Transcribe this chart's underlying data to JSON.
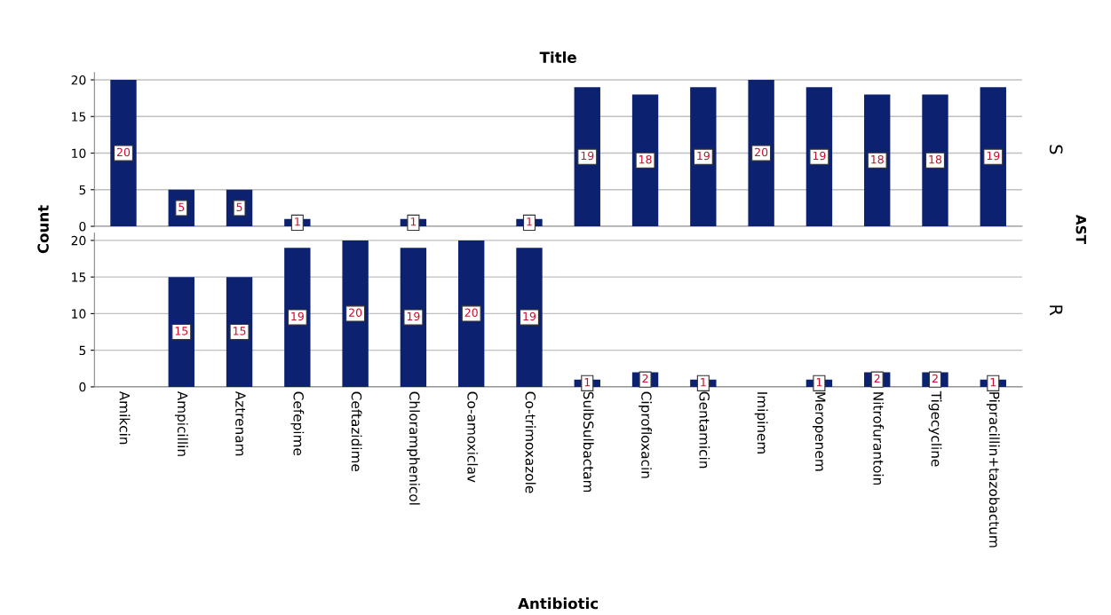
{
  "chart_data": [
    {
      "type": "bar",
      "title": "Title",
      "ylabel": "Count",
      "categories": [
        null,
        null,
        null,
        null,
        null,
        null,
        null,
        null,
        null,
        null,
        null,
        null,
        null,
        null,
        null,
        null
      ],
      "values": [
        20,
        5,
        5,
        1,
        0,
        1,
        0,
        1,
        19,
        18,
        19,
        20,
        19,
        18,
        18,
        19
      ],
      "value_labels": [
        "20",
        "5",
        "5",
        "1",
        null,
        "1",
        null,
        "1",
        "19",
        "18",
        "19",
        "20",
        "19",
        "18",
        "18",
        "19"
      ],
      "color": "#0c2270",
      "ylim": [
        0,
        21
      ],
      "yticks": [
        0,
        5,
        10,
        15,
        20
      ],
      "grid": "y",
      "tick_labels": "y",
      "annotations": [
        "S",
        "AST"
      ]
    },
    {
      "type": "bar",
      "xlabel": "Antibiotic",
      "categories": [
        "Amikcin",
        "Ampicillin",
        "Aztrenam",
        "Cefepime",
        "Ceftazidime",
        "Chloramphenicol",
        "Co-amoxiclav",
        "Co-trimoxazole",
        "SulbSulbactam",
        "Ciprofloxacin",
        "Gentamicin",
        "Imipinem",
        "Meropenem",
        "Nitrofurantoin",
        "Tigecycline",
        "Pipracillin+tazobactum"
      ],
      "values": [
        0,
        15,
        15,
        19,
        20,
        19,
        20,
        19,
        1,
        2,
        1,
        0,
        1,
        2,
        2,
        1
      ],
      "value_labels": [
        null,
        "15",
        "15",
        "19",
        "20",
        "19",
        "20",
        "19",
        "1",
        "2",
        "1",
        null,
        "1",
        "2",
        "2",
        "1"
      ],
      "color": "#0c2270",
      "ylim": [
        0,
        21
      ],
      "yticks": [
        0,
        5,
        10,
        15,
        20
      ],
      "grid": "y",
      "annotations": [
        "R"
      ]
    }
  ]
}
